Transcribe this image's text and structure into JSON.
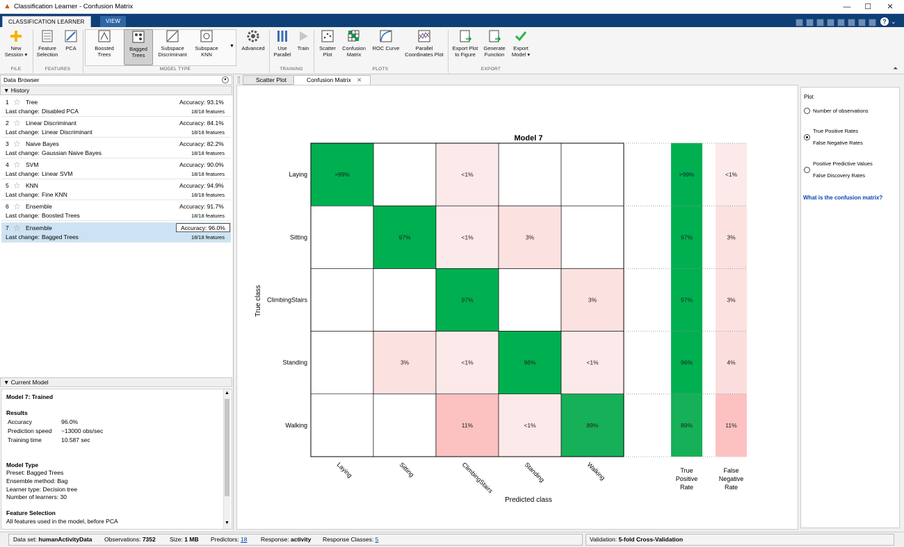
{
  "window": {
    "title": "Classification Learner - Confusion Matrix",
    "controls": [
      "—",
      "☐",
      "✕"
    ]
  },
  "ribbon": {
    "tabs": [
      "CLASSIFICATION LEARNER",
      "VIEW"
    ],
    "buttons": {
      "new_session": "New Session ▾",
      "feature_selection": "Feature Selection",
      "pca": "PCA",
      "boosted_trees": "Boosted Trees",
      "bagged_trees": "Bagged Trees",
      "subspace_discriminant": "Subspace Discriminant",
      "subspace_knn": "Subspace KNN",
      "advanced": "Advanced",
      "use_parallel": "Use Parallel",
      "train": "Train",
      "scatter_plot": "Scatter Plot",
      "confusion_matrix": "Confusion Matrix",
      "roc_curve": "ROC Curve",
      "parallel_coordinates_plot": "Parallel Coordinates Plot",
      "export_plot": "Export Plot to Figure",
      "generate_function": "Generate Function",
      "export_model": "Export Model ▾"
    },
    "groups": {
      "file": "FILE",
      "features": "FEATURES",
      "model_type": "MODEL TYPE",
      "training": "TRAINING",
      "plots": "PLOTS",
      "export": "EXPORT"
    }
  },
  "data_browser": {
    "title": "Data Browser",
    "history_label": "History",
    "last_change_label": "Last change:",
    "accuracy_label": "Accuracy:",
    "items": [
      {
        "num": "1",
        "name": "Tree",
        "accuracy": "93.1%",
        "last_change": "Disabled PCA",
        "features": "18/18 features"
      },
      {
        "num": "2",
        "name": "Linear Discriminant",
        "accuracy": "84.1%",
        "last_change": "Linear Discriminant",
        "features": "18/18 features"
      },
      {
        "num": "3",
        "name": "Naive Bayes",
        "accuracy": "82.2%",
        "last_change": "Gaussian Naive Bayes",
        "features": "18/18 features"
      },
      {
        "num": "4",
        "name": "SVM",
        "accuracy": "90.0%",
        "last_change": "Linear SVM",
        "features": "18/18 features"
      },
      {
        "num": "5",
        "name": "KNN",
        "accuracy": "94.9%",
        "last_change": "Fine KNN",
        "features": "18/18 features"
      },
      {
        "num": "6",
        "name": "Ensemble",
        "accuracy": "91.7%",
        "last_change": "Boosted Trees",
        "features": "18/18 features"
      },
      {
        "num": "7",
        "name": "Ensemble",
        "accuracy": "96.0%",
        "last_change": "Bagged Trees",
        "features": "18/18 features",
        "selected": true
      }
    ]
  },
  "current_model": {
    "section_title": "Current Model",
    "heading": "Model 7: Trained",
    "results_title": "Results",
    "results": [
      {
        "label": "Accuracy",
        "value": "96.0%"
      },
      {
        "label": "Prediction speed",
        "value": "~13000 obs/sec"
      },
      {
        "label": "Training time",
        "value": "10.587 sec"
      }
    ],
    "model_type_title": "Model Type",
    "model_type": [
      "Preset: Bagged Trees",
      "Ensemble method: Bag",
      "Learner type: Decision tree",
      "Number of learners: 30"
    ],
    "feature_selection_title": "Feature Selection",
    "feature_selection": "All features used in the model, before PCA"
  },
  "doc_tabs": [
    "Scatter Plot",
    "Confusion Matrix"
  ],
  "plot_options": {
    "title": "Plot",
    "options": [
      {
        "label": "Number of observations",
        "label2": "",
        "selected": false
      },
      {
        "label": "True Positive Rates",
        "label2": "False Negative Rates",
        "selected": true
      },
      {
        "label": "Positive Predictive Values",
        "label2": "False Discovery Rates",
        "selected": false
      }
    ],
    "help_link": "What is the confusion matrix?"
  },
  "chart_data": {
    "type": "heatmap",
    "title": "Model 7",
    "xlabel": "Predicted class",
    "ylabel": "True class",
    "classes": [
      "Laying",
      "Sitting",
      "ClimbingStairs",
      "Standing",
      "Walking"
    ],
    "cells": [
      [
        "Laying",
        "Laying",
        ">99%",
        99.5
      ],
      [
        "Laying",
        "ClimbingStairs",
        "<1%",
        0.5
      ],
      [
        "Sitting",
        "Sitting",
        "97%",
        97
      ],
      [
        "Sitting",
        "ClimbingStairs",
        "<1%",
        0.5
      ],
      [
        "Sitting",
        "Standing",
        "3%",
        3
      ],
      [
        "ClimbingStairs",
        "ClimbingStairs",
        "97%",
        97
      ],
      [
        "ClimbingStairs",
        "Walking",
        "3%",
        3
      ],
      [
        "Standing",
        "Sitting",
        "3%",
        3
      ],
      [
        "Standing",
        "ClimbingStairs",
        "<1%",
        0.5
      ],
      [
        "Standing",
        "Standing",
        "96%",
        96
      ],
      [
        "Standing",
        "Walking",
        "<1%",
        0.5
      ],
      [
        "Walking",
        "ClimbingStairs",
        "11%",
        11
      ],
      [
        "Walking",
        "Standing",
        "<1%",
        0.5
      ],
      [
        "Walking",
        "Walking",
        "89%",
        89
      ]
    ],
    "tpr": [
      ">99%",
      "97%",
      "97%",
      "96%",
      "89%"
    ],
    "fnr": [
      "<1%",
      "3%",
      "3%",
      "4%",
      "11%"
    ],
    "tpr_values": [
      99.5,
      97,
      97,
      96,
      89
    ],
    "fnr_values": [
      0.5,
      3,
      3,
      4,
      11
    ],
    "tpr_label": [
      "True",
      "Positive",
      "Rate"
    ],
    "fnr_label": [
      "False",
      "Negative",
      "Rate"
    ],
    "colors": {
      "diag": "#00b050",
      "off": "#f8c4c4",
      "border": "#000000"
    }
  },
  "status": {
    "dataset_label": "Data set:",
    "dataset": "humanActivityData",
    "observations_label": "Observations:",
    "observations": "7352",
    "size_label": "Size:",
    "size": "1 MB",
    "predictors_label": "Predictors:",
    "predictors": "18",
    "response_label": "Response:",
    "response": "activity",
    "classes_label": "Response Classes:",
    "classes": "5",
    "validation_label": "Validation:",
    "validation": "5-fold Cross-Validation"
  }
}
